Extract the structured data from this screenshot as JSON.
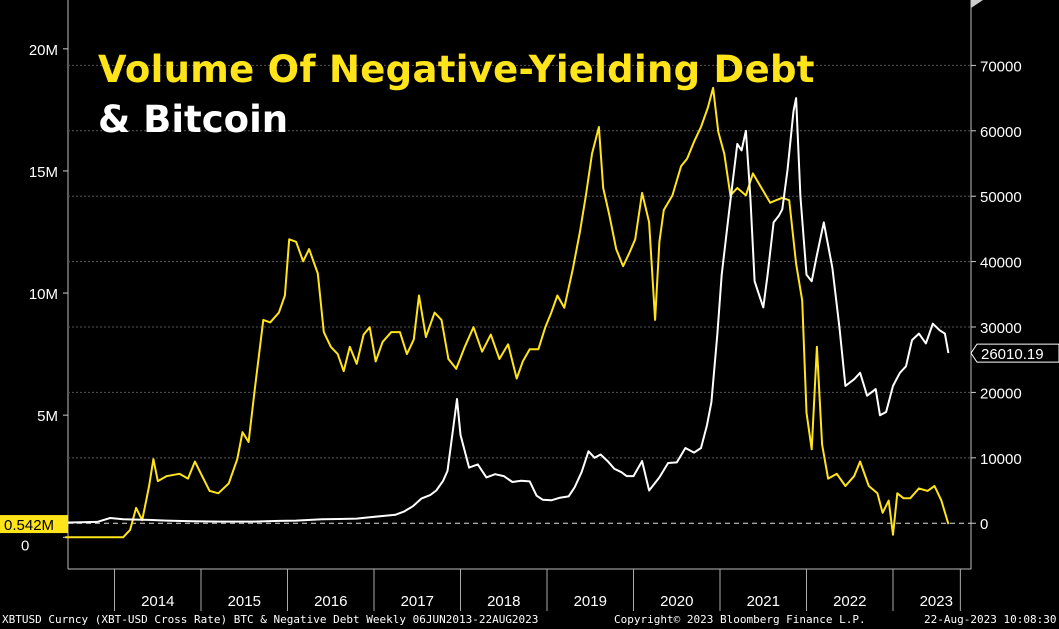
{
  "title": {
    "line1": "Volume Of Negative-Yielding Debt",
    "line2": "& Bitcoin"
  },
  "footer": {
    "left": "XBTUSD Curncy (XBT-USD Cross Rate) BTC & Negative Debt  Weekly 06JUN2013-22AUG2023",
    "center": "Copyright© 2023 Bloomberg Finance L.P.",
    "right": "22-Aug-2023 10:08:30"
  },
  "colors": {
    "background": "#000000",
    "debt": "#ffe41a",
    "bitcoin": "#ffffff",
    "grid": "#444444"
  },
  "chart_data": {
    "type": "line",
    "x_start": 2013.43,
    "x_end": 2023.64,
    "xticks": [
      "2014",
      "2015",
      "2016",
      "2017",
      "2018",
      "2019",
      "2020",
      "2021",
      "2022",
      "2023"
    ],
    "left_axis": {
      "ylim": [
        -1.3,
        22.0
      ],
      "ticks": [
        0,
        5,
        10,
        15,
        20
      ],
      "tick_labels": [
        "0",
        "5M",
        "10M",
        "15M",
        "20M"
      ]
    },
    "right_axis": {
      "ylim": [
        -7000,
        80000
      ],
      "ticks": [
        0,
        10000,
        20000,
        30000,
        40000,
        50000,
        60000,
        70000
      ],
      "tick_labels": [
        "0",
        "10000",
        "20000",
        "30000",
        "40000",
        "50000",
        "60000",
        "70000"
      ]
    },
    "grid": true,
    "series": [
      {
        "name": "Negative Debt",
        "axis": "left",
        "color": "#ffe41a",
        "last_value_label": "0.542M",
        "points": [
          [
            2013.43,
            0
          ],
          [
            2013.9,
            0
          ],
          [
            2014.1,
            0
          ],
          [
            2014.18,
            0.3
          ],
          [
            2014.25,
            1.2
          ],
          [
            2014.32,
            0.7
          ],
          [
            2014.4,
            2.1
          ],
          [
            2014.45,
            3.2
          ],
          [
            2014.5,
            2.3
          ],
          [
            2014.6,
            2.5
          ],
          [
            2014.75,
            2.6
          ],
          [
            2014.85,
            2.4
          ],
          [
            2014.93,
            3.1
          ],
          [
            2015.0,
            2.6
          ],
          [
            2015.1,
            1.9
          ],
          [
            2015.2,
            1.8
          ],
          [
            2015.32,
            2.2
          ],
          [
            2015.42,
            3.2
          ],
          [
            2015.48,
            4.3
          ],
          [
            2015.55,
            3.9
          ],
          [
            2015.62,
            6.0
          ],
          [
            2015.72,
            8.9
          ],
          [
            2015.8,
            8.8
          ],
          [
            2015.9,
            9.2
          ],
          [
            2015.97,
            9.9
          ],
          [
            2016.02,
            12.2
          ],
          [
            2016.1,
            12.1
          ],
          [
            2016.18,
            11.3
          ],
          [
            2016.25,
            11.8
          ],
          [
            2016.35,
            10.8
          ],
          [
            2016.42,
            8.4
          ],
          [
            2016.5,
            7.8
          ],
          [
            2016.58,
            7.5
          ],
          [
            2016.65,
            6.8
          ],
          [
            2016.72,
            7.8
          ],
          [
            2016.8,
            7.1
          ],
          [
            2016.88,
            8.3
          ],
          [
            2016.95,
            8.6
          ],
          [
            2017.02,
            7.2
          ],
          [
            2017.1,
            8.0
          ],
          [
            2017.2,
            8.4
          ],
          [
            2017.3,
            8.4
          ],
          [
            2017.38,
            7.5
          ],
          [
            2017.46,
            8.1
          ],
          [
            2017.52,
            9.9
          ],
          [
            2017.6,
            8.2
          ],
          [
            2017.7,
            9.2
          ],
          [
            2017.78,
            8.9
          ],
          [
            2017.86,
            7.3
          ],
          [
            2017.95,
            6.9
          ],
          [
            2018.05,
            7.8
          ],
          [
            2018.15,
            8.6
          ],
          [
            2018.25,
            7.6
          ],
          [
            2018.35,
            8.3
          ],
          [
            2018.45,
            7.3
          ],
          [
            2018.55,
            7.9
          ],
          [
            2018.65,
            6.5
          ],
          [
            2018.72,
            7.2
          ],
          [
            2018.8,
            7.7
          ],
          [
            2018.9,
            7.7
          ],
          [
            2018.98,
            8.6
          ],
          [
            2019.05,
            9.2
          ],
          [
            2019.12,
            9.9
          ],
          [
            2019.2,
            9.4
          ],
          [
            2019.3,
            11.0
          ],
          [
            2019.38,
            12.5
          ],
          [
            2019.45,
            14.0
          ],
          [
            2019.52,
            15.7
          ],
          [
            2019.6,
            16.8
          ],
          [
            2019.65,
            14.3
          ],
          [
            2019.72,
            13.2
          ],
          [
            2019.8,
            11.8
          ],
          [
            2019.88,
            11.1
          ],
          [
            2019.96,
            11.7
          ],
          [
            2020.02,
            12.2
          ],
          [
            2020.1,
            14.1
          ],
          [
            2020.18,
            12.9
          ],
          [
            2020.25,
            8.9
          ],
          [
            2020.3,
            12.1
          ],
          [
            2020.35,
            13.4
          ],
          [
            2020.45,
            14.0
          ],
          [
            2020.55,
            15.2
          ],
          [
            2020.62,
            15.5
          ],
          [
            2020.7,
            16.2
          ],
          [
            2020.78,
            16.8
          ],
          [
            2020.86,
            17.6
          ],
          [
            2020.92,
            18.4
          ],
          [
            2020.98,
            16.6
          ],
          [
            2021.05,
            15.7
          ],
          [
            2021.12,
            14.0
          ],
          [
            2021.2,
            14.3
          ],
          [
            2021.3,
            14.0
          ],
          [
            2021.38,
            14.9
          ],
          [
            2021.48,
            14.3
          ],
          [
            2021.58,
            13.7
          ],
          [
            2021.65,
            13.8
          ],
          [
            2021.72,
            13.9
          ],
          [
            2021.8,
            13.8
          ],
          [
            2021.88,
            11.2
          ],
          [
            2021.95,
            9.7
          ],
          [
            2022.0,
            5.1
          ],
          [
            2022.06,
            3.6
          ],
          [
            2022.12,
            7.8
          ],
          [
            2022.18,
            3.8
          ],
          [
            2022.25,
            2.4
          ],
          [
            2022.35,
            2.6
          ],
          [
            2022.45,
            2.1
          ],
          [
            2022.55,
            2.5
          ],
          [
            2022.62,
            3.1
          ],
          [
            2022.72,
            2.1
          ],
          [
            2022.82,
            1.8
          ],
          [
            2022.88,
            1.0
          ],
          [
            2022.95,
            1.5
          ],
          [
            2023.0,
            0.1
          ],
          [
            2023.05,
            1.8
          ],
          [
            2023.12,
            1.6
          ],
          [
            2023.2,
            1.6
          ],
          [
            2023.3,
            2.0
          ],
          [
            2023.4,
            1.9
          ],
          [
            2023.48,
            2.1
          ],
          [
            2023.56,
            1.5
          ],
          [
            2023.64,
            0.54
          ]
        ]
      },
      {
        "name": "XBT-USD",
        "axis": "right",
        "color": "#ffffff",
        "last_value_label": "26010.19",
        "points": [
          [
            2013.43,
            100
          ],
          [
            2013.8,
            200
          ],
          [
            2013.95,
            800
          ],
          [
            2014.1,
            600
          ],
          [
            2014.4,
            500
          ],
          [
            2014.6,
            400
          ],
          [
            2014.9,
            300
          ],
          [
            2015.2,
            250
          ],
          [
            2015.6,
            250
          ],
          [
            2015.9,
            350
          ],
          [
            2016.1,
            400
          ],
          [
            2016.4,
            600
          ],
          [
            2016.6,
            650
          ],
          [
            2016.8,
            700
          ],
          [
            2016.95,
            900
          ],
          [
            2017.1,
            1100
          ],
          [
            2017.25,
            1300
          ],
          [
            2017.35,
            1800
          ],
          [
            2017.45,
            2600
          ],
          [
            2017.55,
            3800
          ],
          [
            2017.65,
            4300
          ],
          [
            2017.72,
            5000
          ],
          [
            2017.8,
            6500
          ],
          [
            2017.85,
            8000
          ],
          [
            2017.92,
            15000
          ],
          [
            2017.96,
            19000
          ],
          [
            2018.0,
            13500
          ],
          [
            2018.05,
            11000
          ],
          [
            2018.1,
            8500
          ],
          [
            2018.2,
            9000
          ],
          [
            2018.3,
            7000
          ],
          [
            2018.4,
            7500
          ],
          [
            2018.5,
            7200
          ],
          [
            2018.6,
            6300
          ],
          [
            2018.7,
            6500
          ],
          [
            2018.8,
            6400
          ],
          [
            2018.88,
            4200
          ],
          [
            2018.95,
            3600
          ],
          [
            2019.05,
            3500
          ],
          [
            2019.15,
            3900
          ],
          [
            2019.25,
            4100
          ],
          [
            2019.32,
            5500
          ],
          [
            2019.4,
            7800
          ],
          [
            2019.48,
            11000
          ],
          [
            2019.55,
            10000
          ],
          [
            2019.62,
            10500
          ],
          [
            2019.7,
            9500
          ],
          [
            2019.78,
            8300
          ],
          [
            2019.86,
            7800
          ],
          [
            2019.92,
            7200
          ],
          [
            2020.0,
            7200
          ],
          [
            2020.1,
            9500
          ],
          [
            2020.18,
            5000
          ],
          [
            2020.3,
            7000
          ],
          [
            2020.4,
            9200
          ],
          [
            2020.5,
            9300
          ],
          [
            2020.6,
            11500
          ],
          [
            2020.7,
            10800
          ],
          [
            2020.78,
            11500
          ],
          [
            2020.85,
            15000
          ],
          [
            2020.9,
            18500
          ],
          [
            2020.97,
            29000
          ],
          [
            2021.02,
            38000
          ],
          [
            2021.1,
            47000
          ],
          [
            2021.2,
            58000
          ],
          [
            2021.25,
            57000
          ],
          [
            2021.3,
            60000
          ],
          [
            2021.35,
            50000
          ],
          [
            2021.4,
            37000
          ],
          [
            2021.45,
            35000
          ],
          [
            2021.5,
            33000
          ],
          [
            2021.55,
            38000
          ],
          [
            2021.62,
            46000
          ],
          [
            2021.68,
            47000
          ],
          [
            2021.72,
            48000
          ],
          [
            2021.78,
            54000
          ],
          [
            2021.85,
            63000
          ],
          [
            2021.88,
            65000
          ],
          [
            2021.93,
            50000
          ],
          [
            2022.0,
            38000
          ],
          [
            2022.06,
            37000
          ],
          [
            2022.12,
            41000
          ],
          [
            2022.2,
            46000
          ],
          [
            2022.3,
            39000
          ],
          [
            2022.38,
            30000
          ],
          [
            2022.45,
            21000
          ],
          [
            2022.55,
            22000
          ],
          [
            2022.62,
            23000
          ],
          [
            2022.7,
            19500
          ],
          [
            2022.8,
            20500
          ],
          [
            2022.85,
            16500
          ],
          [
            2022.92,
            17000
          ],
          [
            2023.0,
            21000
          ],
          [
            2023.08,
            23000
          ],
          [
            2023.15,
            24000
          ],
          [
            2023.22,
            28000
          ],
          [
            2023.3,
            29000
          ],
          [
            2023.38,
            27500
          ],
          [
            2023.46,
            30500
          ],
          [
            2023.54,
            29500
          ],
          [
            2023.6,
            29000
          ],
          [
            2023.64,
            26010
          ]
        ]
      }
    ]
  }
}
